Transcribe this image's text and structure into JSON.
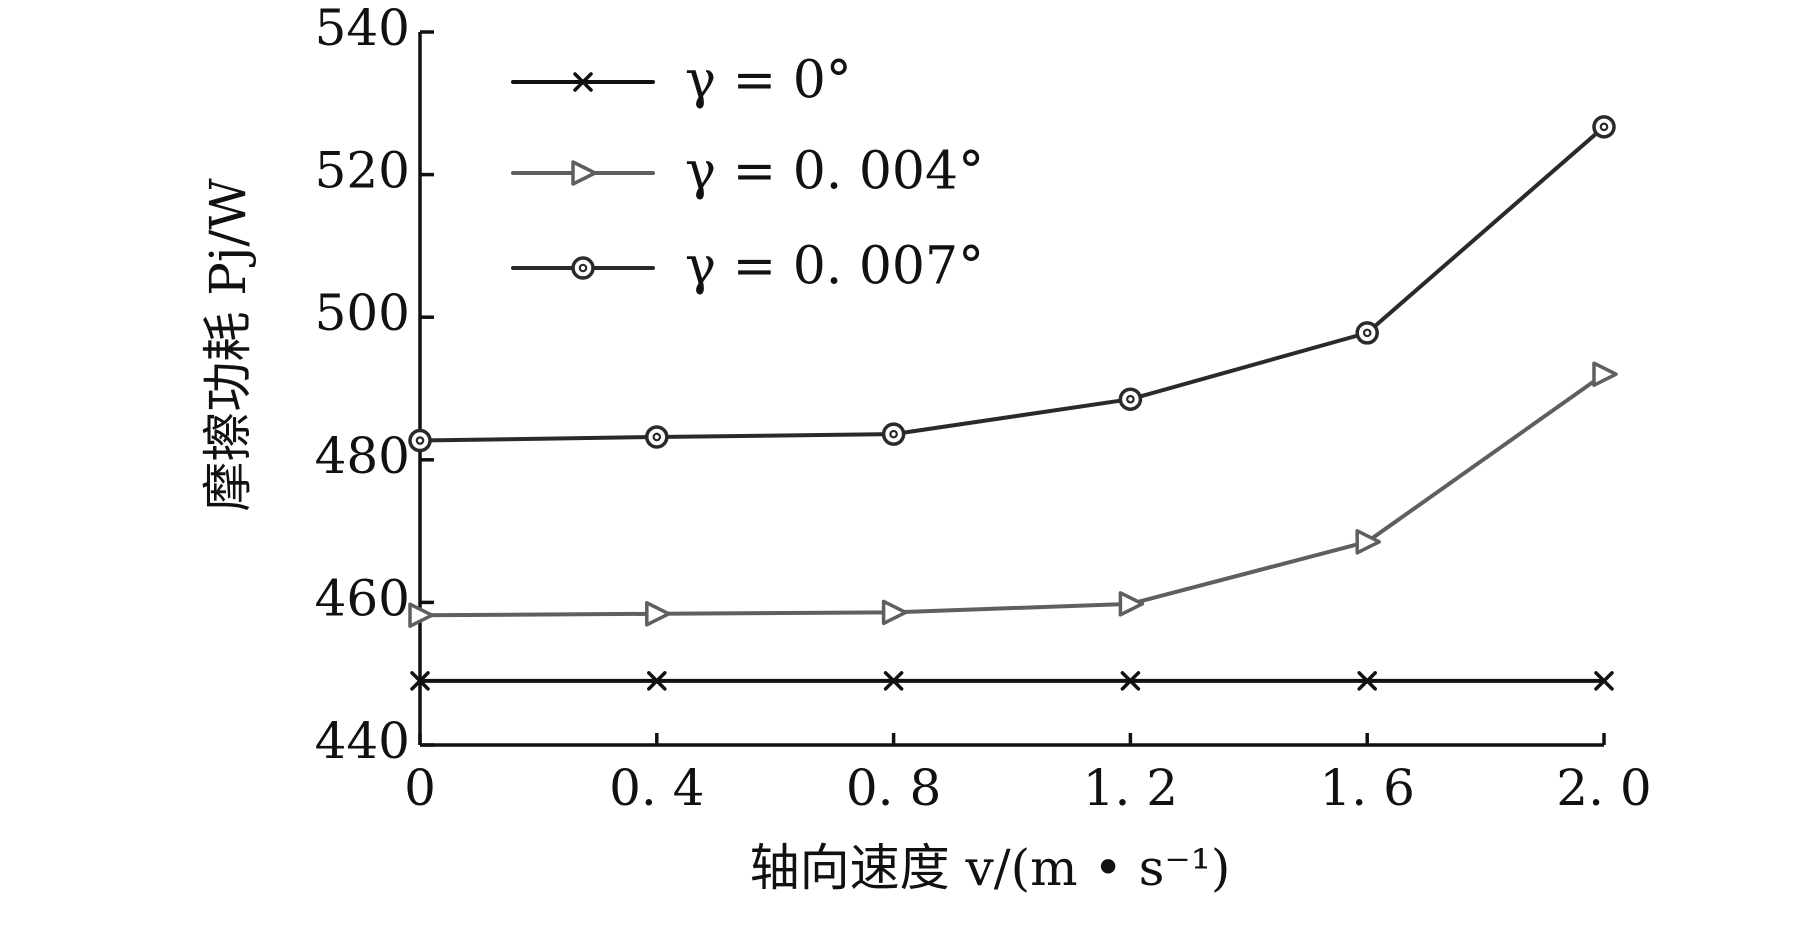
{
  "chart_data": {
    "type": "line",
    "x": [
      0,
      0.4,
      0.8,
      1.2,
      1.6,
      2.0
    ],
    "x_tick_labels": [
      "0",
      "0. 4",
      "0. 8",
      "1. 2",
      "1. 6",
      "2. 0"
    ],
    "y_ticks": [
      440,
      460,
      480,
      500,
      520,
      540
    ],
    "xlim": [
      0,
      2.0
    ],
    "ylim": [
      440,
      540
    ],
    "xlabel": "轴向速度 v/(m • s⁻¹)",
    "ylabel": "摩擦功耗 Pj/W",
    "legend_position": "top-left",
    "series": [
      {
        "name": "γ = 0°",
        "marker": "x",
        "color": "#111111",
        "values": [
          449,
          449,
          449,
          449,
          449,
          449
        ]
      },
      {
        "name": "γ = 0. 004°",
        "marker": "triangle-right",
        "color": "#5f5f5f",
        "values": [
          458.2,
          458.4,
          458.6,
          459.8,
          468.5,
          492
        ]
      },
      {
        "name": "γ = 0. 007°",
        "marker": "circle",
        "color": "#2a2a2a",
        "values": [
          482.7,
          483.2,
          483.6,
          488.5,
          497.8,
          526.7
        ]
      }
    ]
  }
}
